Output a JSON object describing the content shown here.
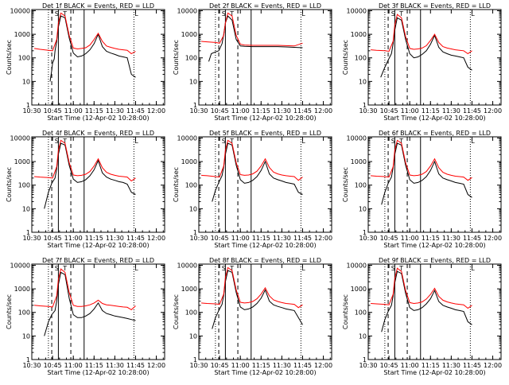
{
  "common": {
    "title_suffix": " BLACK = Events, RED = LLD",
    "xlabel": "Start Time (12-Apr-02 10:28:00)",
    "ylabel": "Counts/sec",
    "x_ticks": [
      "10:30",
      "10:45",
      "11:00",
      "11:15",
      "11:30",
      "11:45",
      "12:00"
    ],
    "y_ticks": [
      "1",
      "10",
      "100",
      "1000",
      "10000"
    ],
    "marker_labels": [
      "S",
      "T",
      "L"
    ],
    "colors": {
      "events": "#000000",
      "lld": "#ff0000"
    }
  },
  "chart_data": [
    {
      "type": "line",
      "detector": "1f",
      "title": "Det 1f",
      "series": [
        {
          "name": "BLACK = Events",
          "x": [
            10.72,
            10.74,
            10.75,
            10.77,
            10.78,
            10.8,
            10.82,
            10.85,
            10.9,
            10.95,
            11.0,
            11.05,
            11.1,
            11.15,
            11.2,
            11.25,
            11.3,
            11.35,
            11.4,
            11.45,
            11.5,
            11.55,
            11.6,
            11.65,
            11.7,
            11.75
          ],
          "y": [
            10,
            30,
            60,
            90,
            200,
            500,
            2000,
            6000,
            5000,
            700,
            160,
            110,
            120,
            150,
            220,
            400,
            1000,
            300,
            190,
            160,
            140,
            120,
            110,
            100,
            20,
            15
          ]
        },
        {
          "name": "RED = LLD",
          "x": [
            10.53,
            10.6,
            10.7,
            10.75,
            10.8,
            10.82,
            10.85,
            10.9,
            10.95,
            11.0,
            11.05,
            11.1,
            11.15,
            11.2,
            11.25,
            11.3,
            11.35,
            11.4,
            11.45,
            11.5,
            11.55,
            11.6,
            11.65,
            11.7,
            11.75
          ],
          "y": [
            250,
            230,
            210,
            200,
            600,
            3000,
            8000,
            6000,
            900,
            260,
            240,
            250,
            270,
            350,
            600,
            1100,
            500,
            320,
            280,
            250,
            230,
            220,
            210,
            150,
            190
          ]
        }
      ]
    },
    {
      "type": "line",
      "detector": "2f",
      "title": "Det 2f",
      "series": [
        {
          "name": "BLACK = Events",
          "x": [
            10.62,
            10.65,
            10.7,
            10.74,
            10.78,
            10.8,
            10.82,
            10.85,
            10.9,
            10.95,
            11.0,
            11.05,
            11.15,
            11.3,
            11.45,
            11.55,
            11.65,
            11.75
          ],
          "y": [
            70,
            150,
            180,
            200,
            400,
            1000,
            3000,
            6000,
            4000,
            600,
            320,
            310,
            300,
            300,
            300,
            290,
            280,
            270
          ]
        },
        {
          "name": "RED = LLD",
          "x": [
            10.53,
            10.6,
            10.7,
            10.75,
            10.8,
            10.82,
            10.85,
            10.9,
            10.95,
            11.0,
            11.05,
            11.15,
            11.3,
            11.45,
            11.55,
            11.65,
            11.75
          ],
          "y": [
            500,
            480,
            450,
            420,
            900,
            3000,
            8000,
            6000,
            900,
            380,
            350,
            340,
            340,
            340,
            330,
            320,
            420
          ]
        }
      ]
    },
    {
      "type": "line",
      "detector": "3f",
      "title": "Det 3f",
      "series": [
        {
          "name": "BLACK = Events",
          "x": [
            10.65,
            10.7,
            10.74,
            10.78,
            10.8,
            10.82,
            10.85,
            10.9,
            10.95,
            11.0,
            11.05,
            11.1,
            11.15,
            11.2,
            11.25,
            11.3,
            11.35,
            11.4,
            11.45,
            11.5,
            11.55,
            11.6,
            11.65,
            11.7,
            11.75
          ],
          "y": [
            15,
            40,
            80,
            150,
            400,
            1500,
            5000,
            4000,
            600,
            150,
            100,
            110,
            140,
            200,
            380,
            900,
            280,
            180,
            150,
            130,
            120,
            110,
            100,
            40,
            30
          ]
        },
        {
          "name": "RED = LLD",
          "x": [
            10.53,
            10.6,
            10.7,
            10.75,
            10.8,
            10.82,
            10.85,
            10.9,
            10.95,
            11.0,
            11.05,
            11.1,
            11.15,
            11.2,
            11.25,
            11.3,
            11.35,
            11.4,
            11.45,
            11.5,
            11.55,
            11.6,
            11.65,
            11.7,
            11.75
          ],
          "y": [
            220,
            210,
            200,
            190,
            500,
            2500,
            7000,
            5000,
            800,
            250,
            230,
            240,
            260,
            330,
            550,
            1000,
            450,
            300,
            260,
            240,
            220,
            210,
            200,
            150,
            200
          ]
        }
      ]
    },
    {
      "type": "line",
      "detector": "4f",
      "title": "Det 4f",
      "series": [
        {
          "name": "BLACK = Events",
          "x": [
            10.65,
            10.7,
            10.74,
            10.78,
            10.8,
            10.82,
            10.85,
            10.9,
            10.95,
            11.0,
            11.05,
            11.1,
            11.15,
            11.2,
            11.25,
            11.3,
            11.35,
            11.4,
            11.45,
            11.5,
            11.55,
            11.6,
            11.65,
            11.7,
            11.75
          ],
          "y": [
            10,
            50,
            120,
            200,
            500,
            2000,
            6000,
            5000,
            700,
            180,
            130,
            140,
            170,
            250,
            450,
            1100,
            330,
            220,
            180,
            160,
            140,
            130,
            110,
            50,
            40
          ]
        },
        {
          "name": "RED = LLD",
          "x": [
            10.53,
            10.6,
            10.7,
            10.75,
            10.8,
            10.82,
            10.85,
            10.9,
            10.95,
            11.0,
            11.05,
            11.1,
            11.15,
            11.2,
            11.25,
            11.3,
            11.35,
            11.4,
            11.45,
            11.5,
            11.55,
            11.6,
            11.65,
            11.7,
            11.75
          ],
          "y": [
            230,
            220,
            210,
            200,
            600,
            3000,
            8000,
            6000,
            900,
            270,
            250,
            260,
            290,
            380,
            650,
            1300,
            550,
            350,
            290,
            260,
            240,
            230,
            220,
            150,
            200
          ]
        }
      ]
    },
    {
      "type": "line",
      "detector": "5f",
      "title": "Det 5f",
      "series": [
        {
          "name": "BLACK = Events",
          "x": [
            10.66,
            10.7,
            10.74,
            10.78,
            10.8,
            10.82,
            10.85,
            10.9,
            10.95,
            11.0,
            11.05,
            11.1,
            11.15,
            11.2,
            11.25,
            11.3,
            11.35,
            11.4,
            11.45,
            11.5,
            11.55,
            11.6,
            11.65,
            11.7,
            11.75
          ],
          "y": [
            20,
            60,
            130,
            250,
            600,
            2000,
            6000,
            5000,
            700,
            170,
            120,
            130,
            160,
            230,
            420,
            1000,
            300,
            200,
            170,
            150,
            130,
            120,
            110,
            50,
            40
          ]
        },
        {
          "name": "RED = LLD",
          "x": [
            10.53,
            10.6,
            10.7,
            10.75,
            10.8,
            10.82,
            10.85,
            10.9,
            10.95,
            11.0,
            11.05,
            11.1,
            11.15,
            11.2,
            11.25,
            11.3,
            11.35,
            11.4,
            11.45,
            11.5,
            11.55,
            11.6,
            11.65,
            11.7,
            11.75
          ],
          "y": [
            260,
            250,
            230,
            220,
            650,
            3000,
            8000,
            6000,
            900,
            280,
            260,
            270,
            300,
            390,
            650,
            1300,
            560,
            360,
            300,
            270,
            250,
            240,
            230,
            160,
            220
          ]
        }
      ]
    },
    {
      "type": "line",
      "detector": "6f",
      "title": "Det 6f",
      "series": [
        {
          "name": "BLACK = Events",
          "x": [
            10.66,
            10.7,
            10.74,
            10.78,
            10.8,
            10.82,
            10.85,
            10.9,
            10.95,
            11.0,
            11.05,
            11.1,
            11.15,
            11.2,
            11.25,
            11.3,
            11.35,
            11.4,
            11.45,
            11.5,
            11.55,
            11.6,
            11.65,
            11.7,
            11.75
          ],
          "y": [
            15,
            50,
            120,
            220,
            550,
            2000,
            6000,
            5000,
            700,
            170,
            120,
            130,
            160,
            230,
            420,
            1000,
            300,
            200,
            170,
            150,
            130,
            120,
            110,
            40,
            30
          ]
        },
        {
          "name": "RED = LLD",
          "x": [
            10.53,
            10.6,
            10.7,
            10.75,
            10.8,
            10.82,
            10.85,
            10.9,
            10.95,
            11.0,
            11.05,
            11.1,
            11.15,
            11.2,
            11.25,
            11.3,
            11.35,
            11.4,
            11.45,
            11.5,
            11.55,
            11.6,
            11.65,
            11.7,
            11.75
          ],
          "y": [
            250,
            240,
            230,
            220,
            600,
            3000,
            8000,
            6000,
            900,
            270,
            250,
            260,
            290,
            380,
            650,
            1300,
            550,
            350,
            290,
            260,
            240,
            230,
            220,
            160,
            210
          ]
        }
      ]
    },
    {
      "type": "line",
      "detector": "7f",
      "title": "Det 7f",
      "series": [
        {
          "name": "BLACK = Events",
          "x": [
            10.65,
            10.7,
            10.74,
            10.78,
            10.8,
            10.82,
            10.85,
            10.9,
            10.95,
            11.0,
            11.05,
            11.1,
            11.15,
            11.2,
            11.25,
            11.3,
            11.35,
            11.4,
            11.45,
            11.5,
            11.55,
            11.6,
            11.65,
            11.7,
            11.75
          ],
          "y": [
            10,
            40,
            80,
            120,
            300,
            1500,
            5000,
            4000,
            400,
            80,
            60,
            60,
            70,
            90,
            140,
            250,
            120,
            90,
            80,
            70,
            65,
            60,
            55,
            50,
            45
          ]
        },
        {
          "name": "RED = LLD",
          "x": [
            10.53,
            10.6,
            10.7,
            10.75,
            10.8,
            10.82,
            10.85,
            10.9,
            10.95,
            11.0,
            11.05,
            11.1,
            11.15,
            11.2,
            11.25,
            11.3,
            11.35,
            11.4,
            11.45,
            11.5,
            11.55,
            11.6,
            11.65,
            11.7,
            11.75
          ],
          "y": [
            200,
            190,
            180,
            170,
            500,
            2500,
            7000,
            5000,
            700,
            200,
            180,
            180,
            190,
            210,
            250,
            330,
            240,
            210,
            200,
            190,
            180,
            170,
            165,
            130,
            190
          ]
        }
      ]
    },
    {
      "type": "line",
      "detector": "8f",
      "title": "Det 8f",
      "series": [
        {
          "name": "BLACK = Events",
          "x": [
            10.66,
            10.7,
            10.74,
            10.78,
            10.8,
            10.82,
            10.85,
            10.9,
            10.95,
            11.0,
            11.05,
            11.1,
            11.15,
            11.2,
            11.25,
            11.3,
            11.35,
            11.4,
            11.45,
            11.5,
            11.55,
            11.6,
            11.65,
            11.7,
            11.75
          ],
          "y": [
            20,
            60,
            120,
            220,
            550,
            2000,
            6000,
            5000,
            700,
            170,
            130,
            140,
            170,
            240,
            400,
            900,
            300,
            210,
            180,
            160,
            140,
            130,
            120,
            60,
            30
          ]
        },
        {
          "name": "RED = LLD",
          "x": [
            10.53,
            10.6,
            10.7,
            10.75,
            10.8,
            10.82,
            10.85,
            10.9,
            10.95,
            11.0,
            11.05,
            11.1,
            11.15,
            11.2,
            11.25,
            11.3,
            11.35,
            11.4,
            11.45,
            11.5,
            11.55,
            11.6,
            11.65,
            11.7,
            11.75
          ],
          "y": [
            250,
            240,
            230,
            220,
            600,
            3000,
            8000,
            6000,
            900,
            270,
            250,
            260,
            290,
            380,
            600,
            1100,
            500,
            340,
            290,
            260,
            240,
            230,
            220,
            160,
            210
          ]
        }
      ]
    },
    {
      "type": "line",
      "detector": "9f",
      "title": "Det 9f",
      "series": [
        {
          "name": "BLACK = Events",
          "x": [
            10.66,
            10.7,
            10.74,
            10.78,
            10.8,
            10.82,
            10.85,
            10.9,
            10.95,
            11.0,
            11.05,
            11.1,
            11.15,
            11.2,
            11.25,
            11.3,
            11.35,
            11.4,
            11.45,
            11.5,
            11.55,
            11.6,
            11.65,
            11.7,
            11.75
          ],
          "y": [
            15,
            50,
            110,
            200,
            500,
            1800,
            5500,
            4500,
            650,
            160,
            120,
            130,
            160,
            230,
            380,
            850,
            290,
            200,
            170,
            150,
            130,
            120,
            110,
            40,
            30
          ]
        },
        {
          "name": "RED = LLD",
          "x": [
            10.53,
            10.6,
            10.7,
            10.75,
            10.8,
            10.82,
            10.85,
            10.9,
            10.95,
            11.0,
            11.05,
            11.1,
            11.15,
            11.2,
            11.25,
            11.3,
            11.35,
            11.4,
            11.45,
            11.5,
            11.55,
            11.6,
            11.65,
            11.7,
            11.75
          ],
          "y": [
            240,
            230,
            220,
            210,
            580,
            2800,
            7500,
            5500,
            850,
            260,
            240,
            250,
            280,
            370,
            580,
            1050,
            480,
            330,
            280,
            250,
            230,
            220,
            210,
            150,
            200
          ]
        }
      ]
    }
  ]
}
